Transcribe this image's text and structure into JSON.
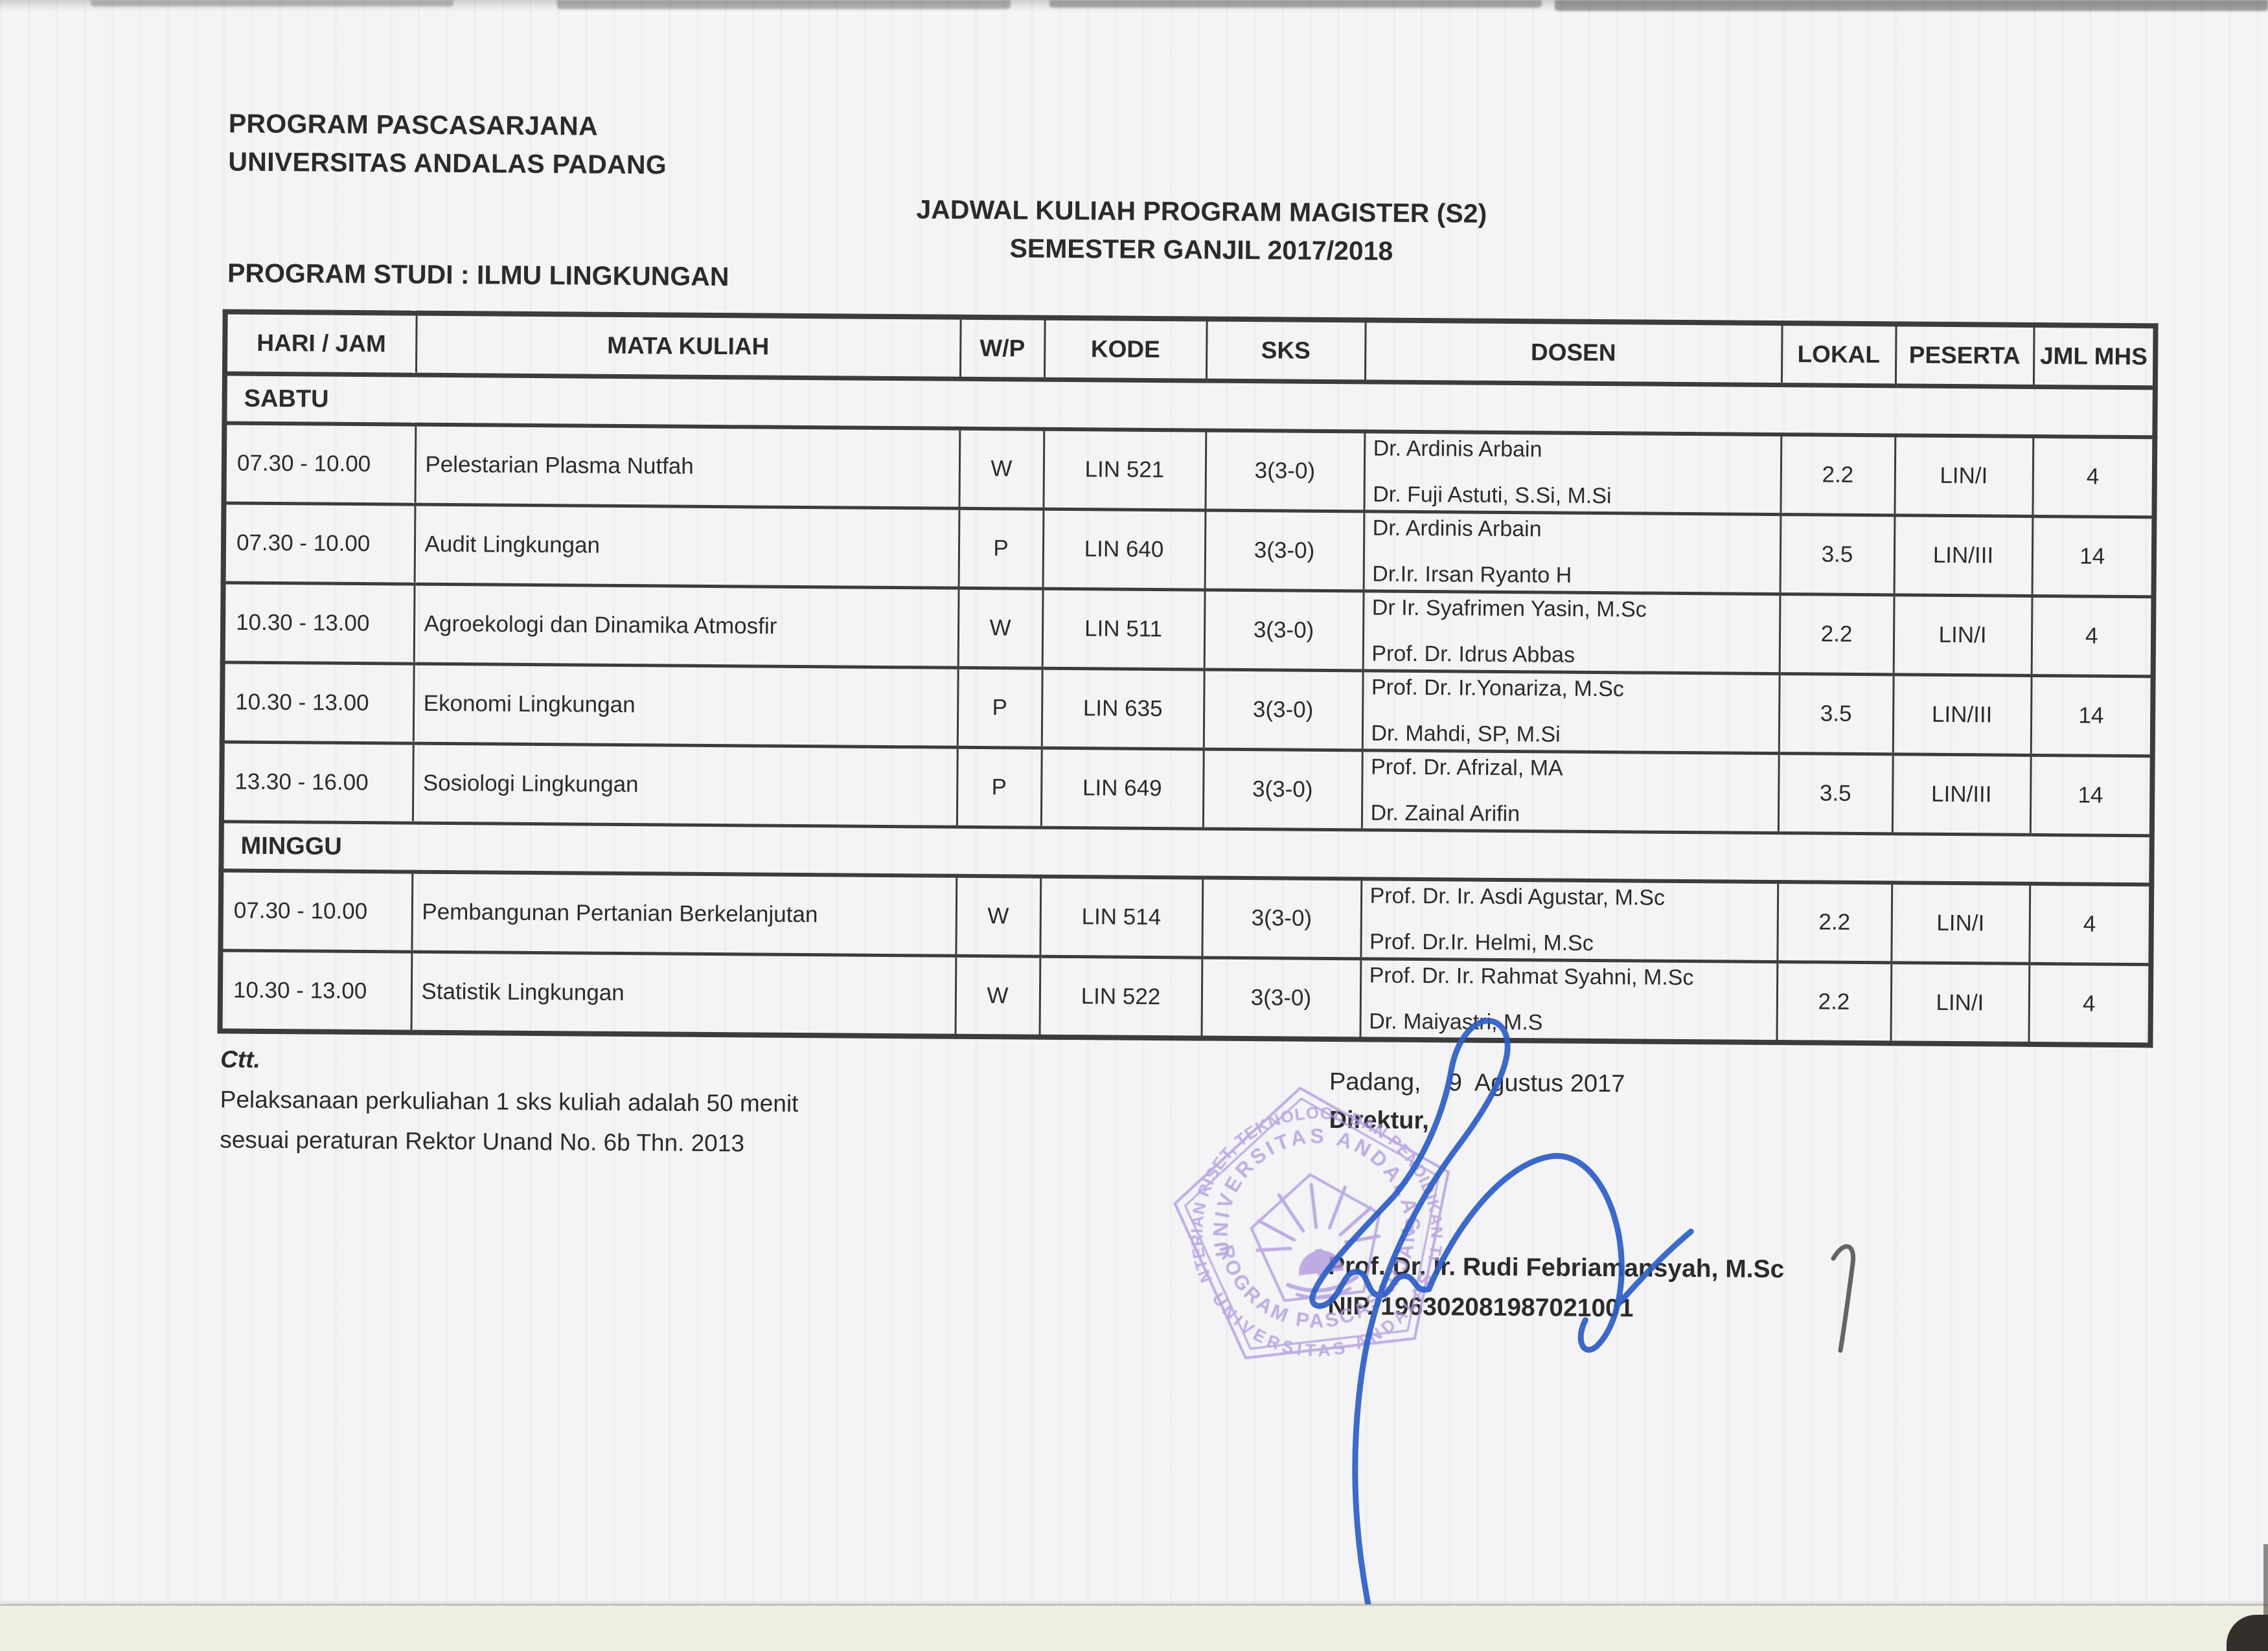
{
  "page": {
    "org_line1": "PROGRAM PASCASARJANA",
    "org_line2": "UNIVERSITAS ANDALAS PADANG",
    "title_line1": "JADWAL KULIAH PROGRAM MAGISTER (S2)",
    "title_line2": "SEMESTER GANJIL 2017/2018",
    "program_studi": "PROGRAM STUDI : ILMU LINGKUNGAN"
  },
  "table": {
    "headers": [
      "HARI / JAM",
      "MATA KULIAH",
      "W/P",
      "KODE",
      "SKS",
      "DOSEN",
      "LOKAL",
      "PESERTA",
      "JML MHS"
    ],
    "sections": [
      {
        "day": "SABTU",
        "rows": [
          {
            "jam": "07.30 - 10.00",
            "mata_kuliah": "Pelestarian Plasma Nutfah",
            "wp": "W",
            "kode": "LIN 521",
            "sks": "3(3-0)",
            "dosen1": "Dr. Ardinis Arbain",
            "dosen2": "Dr. Fuji Astuti, S.Si, M.Si",
            "lokal": "2.2",
            "peserta": "LIN/I",
            "jml": "4"
          },
          {
            "jam": "07.30 - 10.00",
            "mata_kuliah": "Audit Lingkungan",
            "wp": "P",
            "kode": "LIN 640",
            "sks": "3(3-0)",
            "dosen1": "Dr. Ardinis Arbain",
            "dosen2": "Dr.Ir. Irsan Ryanto H",
            "lokal": "3.5",
            "peserta": "LIN/III",
            "jml": "14"
          },
          {
            "jam": "10.30 - 13.00",
            "mata_kuliah": "Agroekologi dan Dinamika Atmosfir",
            "wp": "W",
            "kode": "LIN 511",
            "sks": "3(3-0)",
            "dosen1": "Dr Ir. Syafrimen Yasin, M.Sc",
            "dosen2": "Prof. Dr. Idrus Abbas",
            "lokal": "2.2",
            "peserta": "LIN/I",
            "jml": "4"
          },
          {
            "jam": "10.30 - 13.00",
            "mata_kuliah": "Ekonomi Lingkungan",
            "wp": "P",
            "kode": "LIN 635",
            "sks": "3(3-0)",
            "dosen1": "Prof. Dr. Ir.Yonariza, M.Sc",
            "dosen2": "Dr. Mahdi, SP, M.Si",
            "lokal": "3.5",
            "peserta": "LIN/III",
            "jml": "14"
          },
          {
            "jam": "13.30 - 16.00",
            "mata_kuliah": "Sosiologi Lingkungan",
            "wp": "P",
            "kode": "LIN 649",
            "sks": "3(3-0)",
            "dosen1": "Prof. Dr. Afrizal, MA",
            "dosen2": "Dr. Zainal Arifin",
            "lokal": "3.5",
            "peserta": "LIN/III",
            "jml": "14"
          }
        ]
      },
      {
        "day": "MINGGU",
        "rows": [
          {
            "jam": "07.30 - 10.00",
            "mata_kuliah": "Pembangunan Pertanian Berkelanjutan",
            "wp": "W",
            "kode": "LIN 514",
            "sks": "3(3-0)",
            "dosen1": "Prof. Dr. Ir.  Asdi Agustar, M.Sc",
            "dosen2": "Prof. Dr.Ir. Helmi, M.Sc",
            "lokal": "2.2",
            "peserta": "LIN/I",
            "jml": "4"
          },
          {
            "jam": "10.30 - 13.00",
            "mata_kuliah": "Statistik Lingkungan",
            "wp": "W",
            "kode": "LIN 522",
            "sks": "3(3-0)",
            "dosen1": "Prof. Dr. Ir. Rahmat Syahni, M.Sc",
            "dosen2": "Dr. Maiyastri, M.S",
            "lokal": "2.2",
            "peserta": "LIN/I",
            "jml": "4"
          }
        ]
      }
    ]
  },
  "notes": {
    "label": "Ctt.",
    "line1": "Pelaksanaan  perkuliahan 1 sks kuliah adalah 50 menit",
    "line2": "sesuai peraturan Rektor Unand No. 6b Thn. 2013"
  },
  "signature_block": {
    "place_date": "Padang,    9  Agustus 2017",
    "role": "Direktur,",
    "name": "Prof. Dr. Ir. Rudi Febriamansyah, M.Sc",
    "nip": "NIP. 196302081987021001"
  },
  "stamp": {
    "arc_top_outer": "KEMENTERIAN RISET, TEKNOLOGI, DAN PENDIDIKAN TINGGI",
    "arc_top_inner": "UNIVERSITAS ANDALAS",
    "arc_bottom_inner": "PROGRAM PASCASARJANA",
    "arc_bottom_outer": "UNIVERSITAS ANDALAS",
    "color": "#b09ade"
  },
  "colors": {
    "ink": "#2b2b2b",
    "table_line": "#3c3c3c",
    "signature_blue": "#2d5ec6",
    "stamp_purple": "#b09ade",
    "paper": "#f4f4f6",
    "under_page_cream": "#efeee2"
  }
}
